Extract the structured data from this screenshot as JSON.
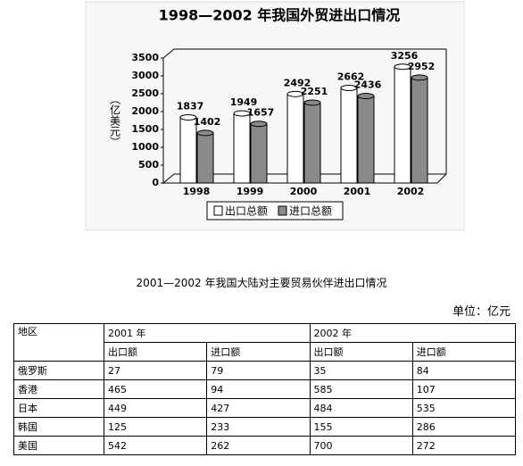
{
  "chart_data": {
    "type": "bar",
    "title": "1998—2002 年我国外贸进出口情况",
    "y_label": "（亿美元）",
    "categories": [
      "1998",
      "1999",
      "2000",
      "2001",
      "2002"
    ],
    "series": [
      {
        "name": "出口总额",
        "color": "#ffffff",
        "values": [
          1837,
          1949,
          2492,
          2662,
          3256
        ]
      },
      {
        "name": "进口总额",
        "color": "#8a8a8a",
        "values": [
          1402,
          1657,
          2251,
          2436,
          2952
        ]
      }
    ],
    "ylim": [
      0,
      3500
    ],
    "yticks": [
      0,
      500,
      1000,
      1500,
      2000,
      2500,
      3000,
      3500
    ]
  },
  "table": {
    "title": "2001—2002 年我国大陆对主要贸易伙伴进出口情况",
    "unit": "单位：亿元",
    "header": [
      "地区",
      "2001 年",
      "2002 年"
    ],
    "subheader": [
      "出口额",
      "进口额",
      "出口额",
      "进口额"
    ],
    "rows": [
      [
        "俄罗斯",
        27,
        79,
        35,
        84
      ],
      [
        "香港",
        465,
        94,
        585,
        107
      ],
      [
        "日本",
        449,
        427,
        484,
        535
      ],
      [
        "韩国",
        125,
        233,
        155,
        286
      ],
      [
        "美国",
        542,
        262,
        700,
        272
      ]
    ]
  }
}
